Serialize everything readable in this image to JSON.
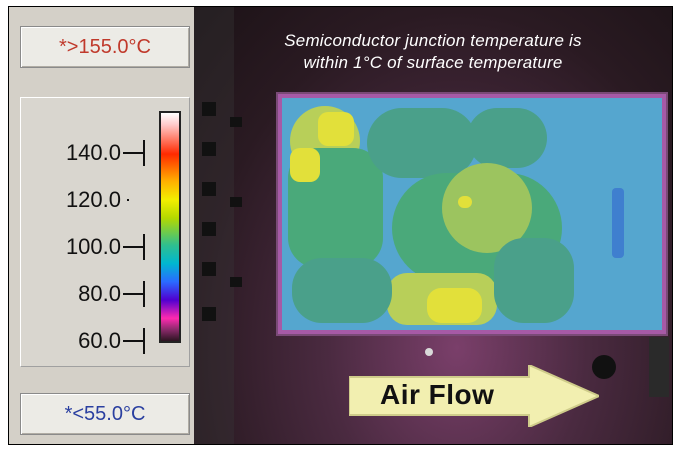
{
  "readouts": {
    "max_label": "*>155.0°C",
    "min_label": "*<55.0°C"
  },
  "scale": {
    "ticks": [
      "140.0",
      "120.0",
      "100.0",
      "80.0",
      "60.0"
    ]
  },
  "image": {
    "caption_line1": "Semiconductor junction temperature is",
    "caption_line2": "within 1°C of surface temperature",
    "arrow_label": "Air Flow"
  },
  "colors": {
    "max_text": "#c0392b",
    "min_text": "#2a3fa0",
    "board": "#55a6cf",
    "hot": "#e2e03a",
    "warm": "#4aa97a",
    "arrow": "#f2efb0"
  }
}
